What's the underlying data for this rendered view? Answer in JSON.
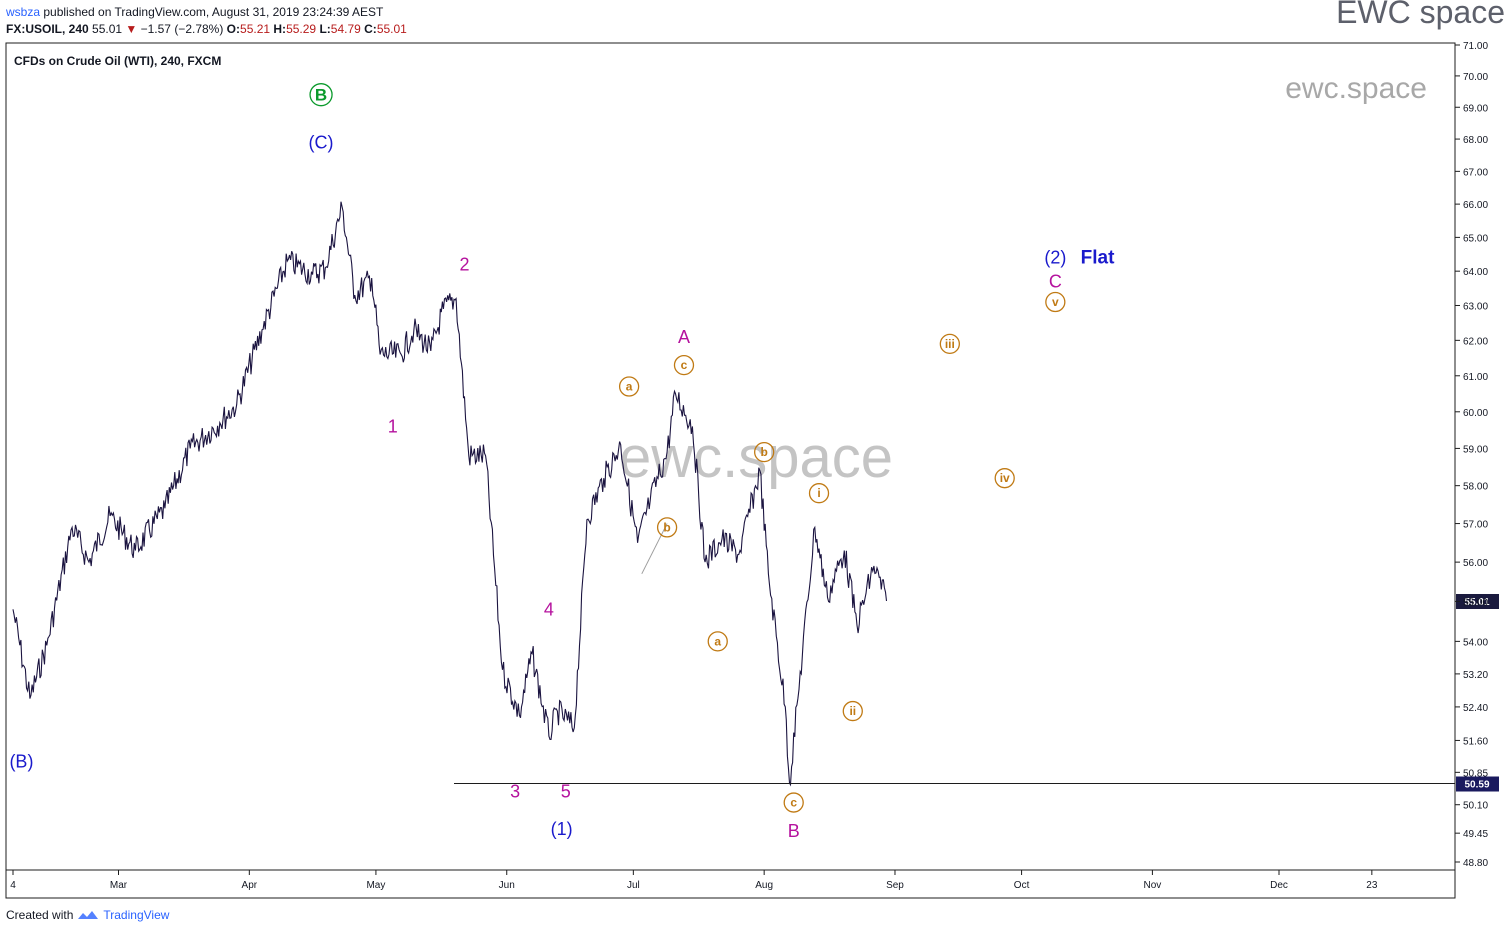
{
  "header": {
    "user": "wsbza",
    "published": " published on TradingView.com, August 31, 2019 23:24:39 AEST",
    "symbol": "FX:USOIL, 240",
    "last": " 55.01 ",
    "change": "▼",
    "change_text": " −1.57 (−2.78%) ",
    "o_label": "O:",
    "o": "55.21",
    "h_label": "H:",
    "h": "55.29",
    "l_label": "L:",
    "l": "54.79",
    "c_label": "C:",
    "c": "55.01"
  },
  "brand_top": "EWC space",
  "footer": {
    "created": "Created with",
    "tv": "TradingView"
  },
  "colors": {
    "candle": "#1b1440",
    "magenta": "#b5129e",
    "blue": "#1a1acc",
    "green": "#0b9a2c",
    "orange": "#c07a14",
    "watermark": "#b0b0b0"
  },
  "chart_data": {
    "type": "line",
    "title": "CFDs on Crude Oil (WTI), 240, FXCM",
    "watermark_center": "ewc.space",
    "watermark_right": "ewc.space",
    "xlabel": "",
    "ylabel": "",
    "ylim": [
      48.5,
      71.0
    ],
    "y_scale": "log",
    "y_ticks": [
      "71.00",
      "70.00",
      "69.00",
      "68.00",
      "67.00",
      "66.00",
      "65.00",
      "64.00",
      "63.00",
      "62.00",
      "61.00",
      "60.00",
      "59.00",
      "58.00",
      "57.00",
      "56.00",
      "55.00",
      "54.00",
      "53.20",
      "52.40",
      "51.60",
      "50.85",
      "50.10",
      "49.45",
      "48.80"
    ],
    "x_ticks": [
      "4",
      "Mar",
      "Apr",
      "May",
      "Jun",
      "Jul",
      "Aug",
      "Sep",
      "Oct",
      "Nov",
      "Dec",
      "23"
    ],
    "price_label": "55.01",
    "level_label": "50.59",
    "level": 50.59,
    "series": [
      {
        "x": [
          "2019-02-04",
          "2019-02-08",
          "2019-02-12",
          "2019-02-18",
          "2019-02-22",
          "2019-02-27",
          "2019-03-05",
          "2019-03-12",
          "2019-03-18",
          "2019-03-25",
          "2019-03-29",
          "2019-04-04",
          "2019-04-10",
          "2019-04-16",
          "2019-04-19",
          "2019-04-23",
          "2019-04-26",
          "2019-04-30",
          "2019-05-02",
          "2019-05-07",
          "2019-05-10",
          "2019-05-14",
          "2019-05-17",
          "2019-05-20",
          "2019-05-23",
          "2019-05-27",
          "2019-05-31",
          "2019-06-04",
          "2019-06-07",
          "2019-06-11",
          "2019-06-13",
          "2019-06-17",
          "2019-06-20",
          "2019-06-24",
          "2019-06-28",
          "2019-07-02",
          "2019-07-05",
          "2019-07-09",
          "2019-07-11",
          "2019-07-15",
          "2019-07-18",
          "2019-07-22",
          "2019-07-26",
          "2019-07-31",
          "2019-08-02",
          "2019-08-06",
          "2019-08-07",
          "2019-08-09",
          "2019-08-13",
          "2019-08-16",
          "2019-08-20",
          "2019-08-23",
          "2019-08-27",
          "2019-08-30"
        ],
        "y": [
          54.8,
          52.6,
          53.9,
          56.9,
          56.0,
          57.2,
          56.3,
          57.4,
          59.0,
          59.7,
          60.2,
          62.3,
          64.3,
          63.9,
          64.1,
          65.9,
          63.3,
          63.8,
          61.6,
          61.6,
          62.3,
          61.7,
          62.9,
          63.2,
          58.8,
          58.8,
          53.3,
          52.2,
          53.7,
          51.7,
          52.3,
          51.9,
          57.1,
          58.2,
          59.1,
          56.5,
          57.6,
          58.9,
          60.5,
          59.6,
          56.0,
          56.6,
          56.2,
          58.4,
          55.7,
          52.4,
          50.6,
          52.6,
          56.9,
          55.1,
          56.3,
          54.4,
          55.9,
          55.01
        ]
      }
    ],
    "annotations": [
      {
        "text": "B",
        "style": "circle",
        "color": "green",
        "x": "2019-04-18",
        "y": 69.4
      },
      {
        "text": "(C)",
        "style": "plain",
        "color": "blue",
        "x": "2019-04-18",
        "y": 67.9
      },
      {
        "text": "(B)",
        "style": "plain",
        "color": "blue",
        "x": "2019-02-06",
        "y": 51.1
      },
      {
        "text": "1",
        "style": "plain",
        "color": "magenta",
        "x": "2019-05-05",
        "y": 59.6
      },
      {
        "text": "2",
        "style": "plain",
        "color": "magenta",
        "x": "2019-05-22",
        "y": 64.2
      },
      {
        "text": "3",
        "style": "plain",
        "color": "magenta",
        "x": "2019-06-03",
        "y": 50.4
      },
      {
        "text": "4",
        "style": "plain",
        "color": "magenta",
        "x": "2019-06-11",
        "y": 54.8
      },
      {
        "text": "5",
        "style": "plain",
        "color": "magenta",
        "x": "2019-06-15",
        "y": 50.4
      },
      {
        "text": "(1)",
        "style": "plain",
        "color": "blue",
        "x": "2019-06-14",
        "y": 49.55
      },
      {
        "text": "a",
        "style": "circle",
        "color": "orange",
        "x": "2019-06-30",
        "y": 60.7
      },
      {
        "text": "b",
        "style": "circle",
        "color": "orange",
        "x": "2019-07-09",
        "y": 56.9
      },
      {
        "text": "c",
        "style": "circle",
        "color": "orange",
        "x": "2019-07-13",
        "y": 61.3
      },
      {
        "text": "A",
        "style": "plain",
        "color": "magenta",
        "x": "2019-07-13",
        "y": 62.1
      },
      {
        "text": "a",
        "style": "circle",
        "color": "orange",
        "x": "2019-07-21",
        "y": 54.0
      },
      {
        "text": "b",
        "style": "circle",
        "color": "orange",
        "x": "2019-08-01",
        "y": 58.9
      },
      {
        "text": "c",
        "style": "circle",
        "color": "orange",
        "x": "2019-08-08",
        "y": 50.15
      },
      {
        "text": "B",
        "style": "plain",
        "color": "magenta",
        "x": "2019-08-08",
        "y": 49.5
      },
      {
        "text": "i",
        "style": "circle",
        "color": "orange",
        "x": "2019-08-14",
        "y": 57.8
      },
      {
        "text": "ii",
        "style": "circle",
        "color": "orange",
        "x": "2019-08-22",
        "y": 52.3
      },
      {
        "text": "iii",
        "style": "circle",
        "color": "orange",
        "x": "2019-09-14",
        "y": 61.9
      },
      {
        "text": "iv",
        "style": "circle",
        "color": "orange",
        "x": "2019-09-27",
        "y": 58.2
      },
      {
        "text": "v",
        "style": "circle",
        "color": "orange",
        "x": "2019-10-09",
        "y": 63.1
      },
      {
        "text": "C",
        "style": "plain",
        "color": "magenta",
        "x": "2019-10-09",
        "y": 63.7
      },
      {
        "text": "(2)",
        "style": "plain",
        "color": "blue",
        "x": "2019-10-09",
        "y": 64.4
      },
      {
        "text": "Flat",
        "style": "bold",
        "color": "blue",
        "x": "2019-10-15",
        "y": 64.4
      }
    ]
  }
}
